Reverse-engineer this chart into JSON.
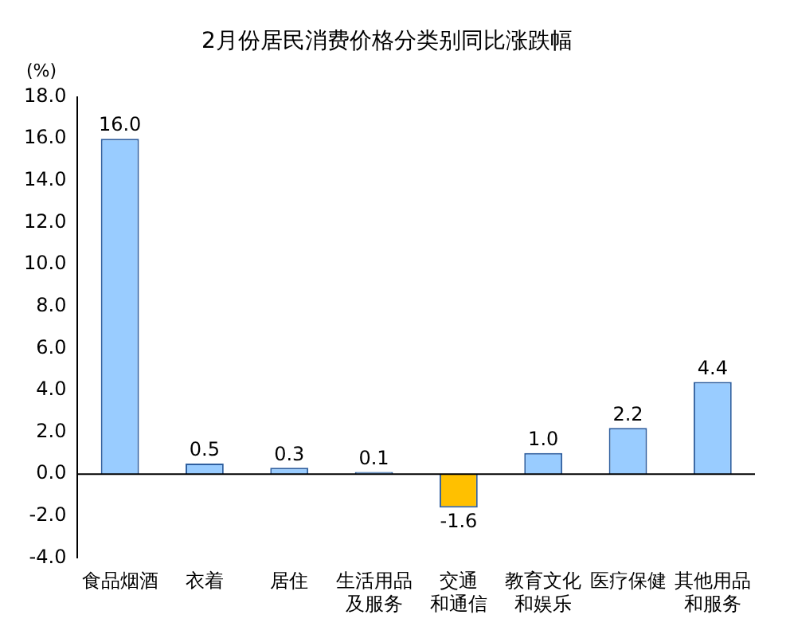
{
  "chart_data": {
    "type": "bar",
    "title": "2月份居民消费价格分类别同比涨跌幅",
    "ylabel": "(%)",
    "categories": [
      "食品烟酒",
      "衣着",
      "居住",
      "生活用品及服务",
      "交通和通信",
      "教育文化和娱乐",
      "医疗保健",
      "其他用品和服务"
    ],
    "values": [
      16.0,
      0.5,
      0.3,
      0.1,
      -1.6,
      1.0,
      2.2,
      4.4
    ],
    "colors": [
      "#99ccff",
      "#99ccff",
      "#99ccff",
      "#99ccff",
      "#ffc000",
      "#99ccff",
      "#99ccff",
      "#99ccff"
    ],
    "value_labels": [
      "16.0",
      "0.5",
      "0.3",
      "0.1",
      "-1.6",
      "1.0",
      "2.2",
      "4.4"
    ],
    "ylim": [
      -4,
      18
    ],
    "yticks": [
      {
        "value": -4,
        "label": "-4.0"
      },
      {
        "value": -2,
        "label": "-2.0"
      },
      {
        "value": 0,
        "label": "0.0"
      },
      {
        "value": 2,
        "label": "2.0"
      },
      {
        "value": 4,
        "label": "4.0"
      },
      {
        "value": 6,
        "label": "6.0"
      },
      {
        "value": 8,
        "label": "8.0"
      },
      {
        "value": 10,
        "label": "10.0"
      },
      {
        "value": 12,
        "label": "12.0"
      },
      {
        "value": 14,
        "label": "14.0"
      },
      {
        "value": 16,
        "label": "16.0"
      },
      {
        "value": 18,
        "label": "18.0"
      }
    ],
    "ref_lines": [
      {
        "axis": "y",
        "value": 0,
        "color": "#000000"
      }
    ],
    "grid": false,
    "legend": false
  }
}
